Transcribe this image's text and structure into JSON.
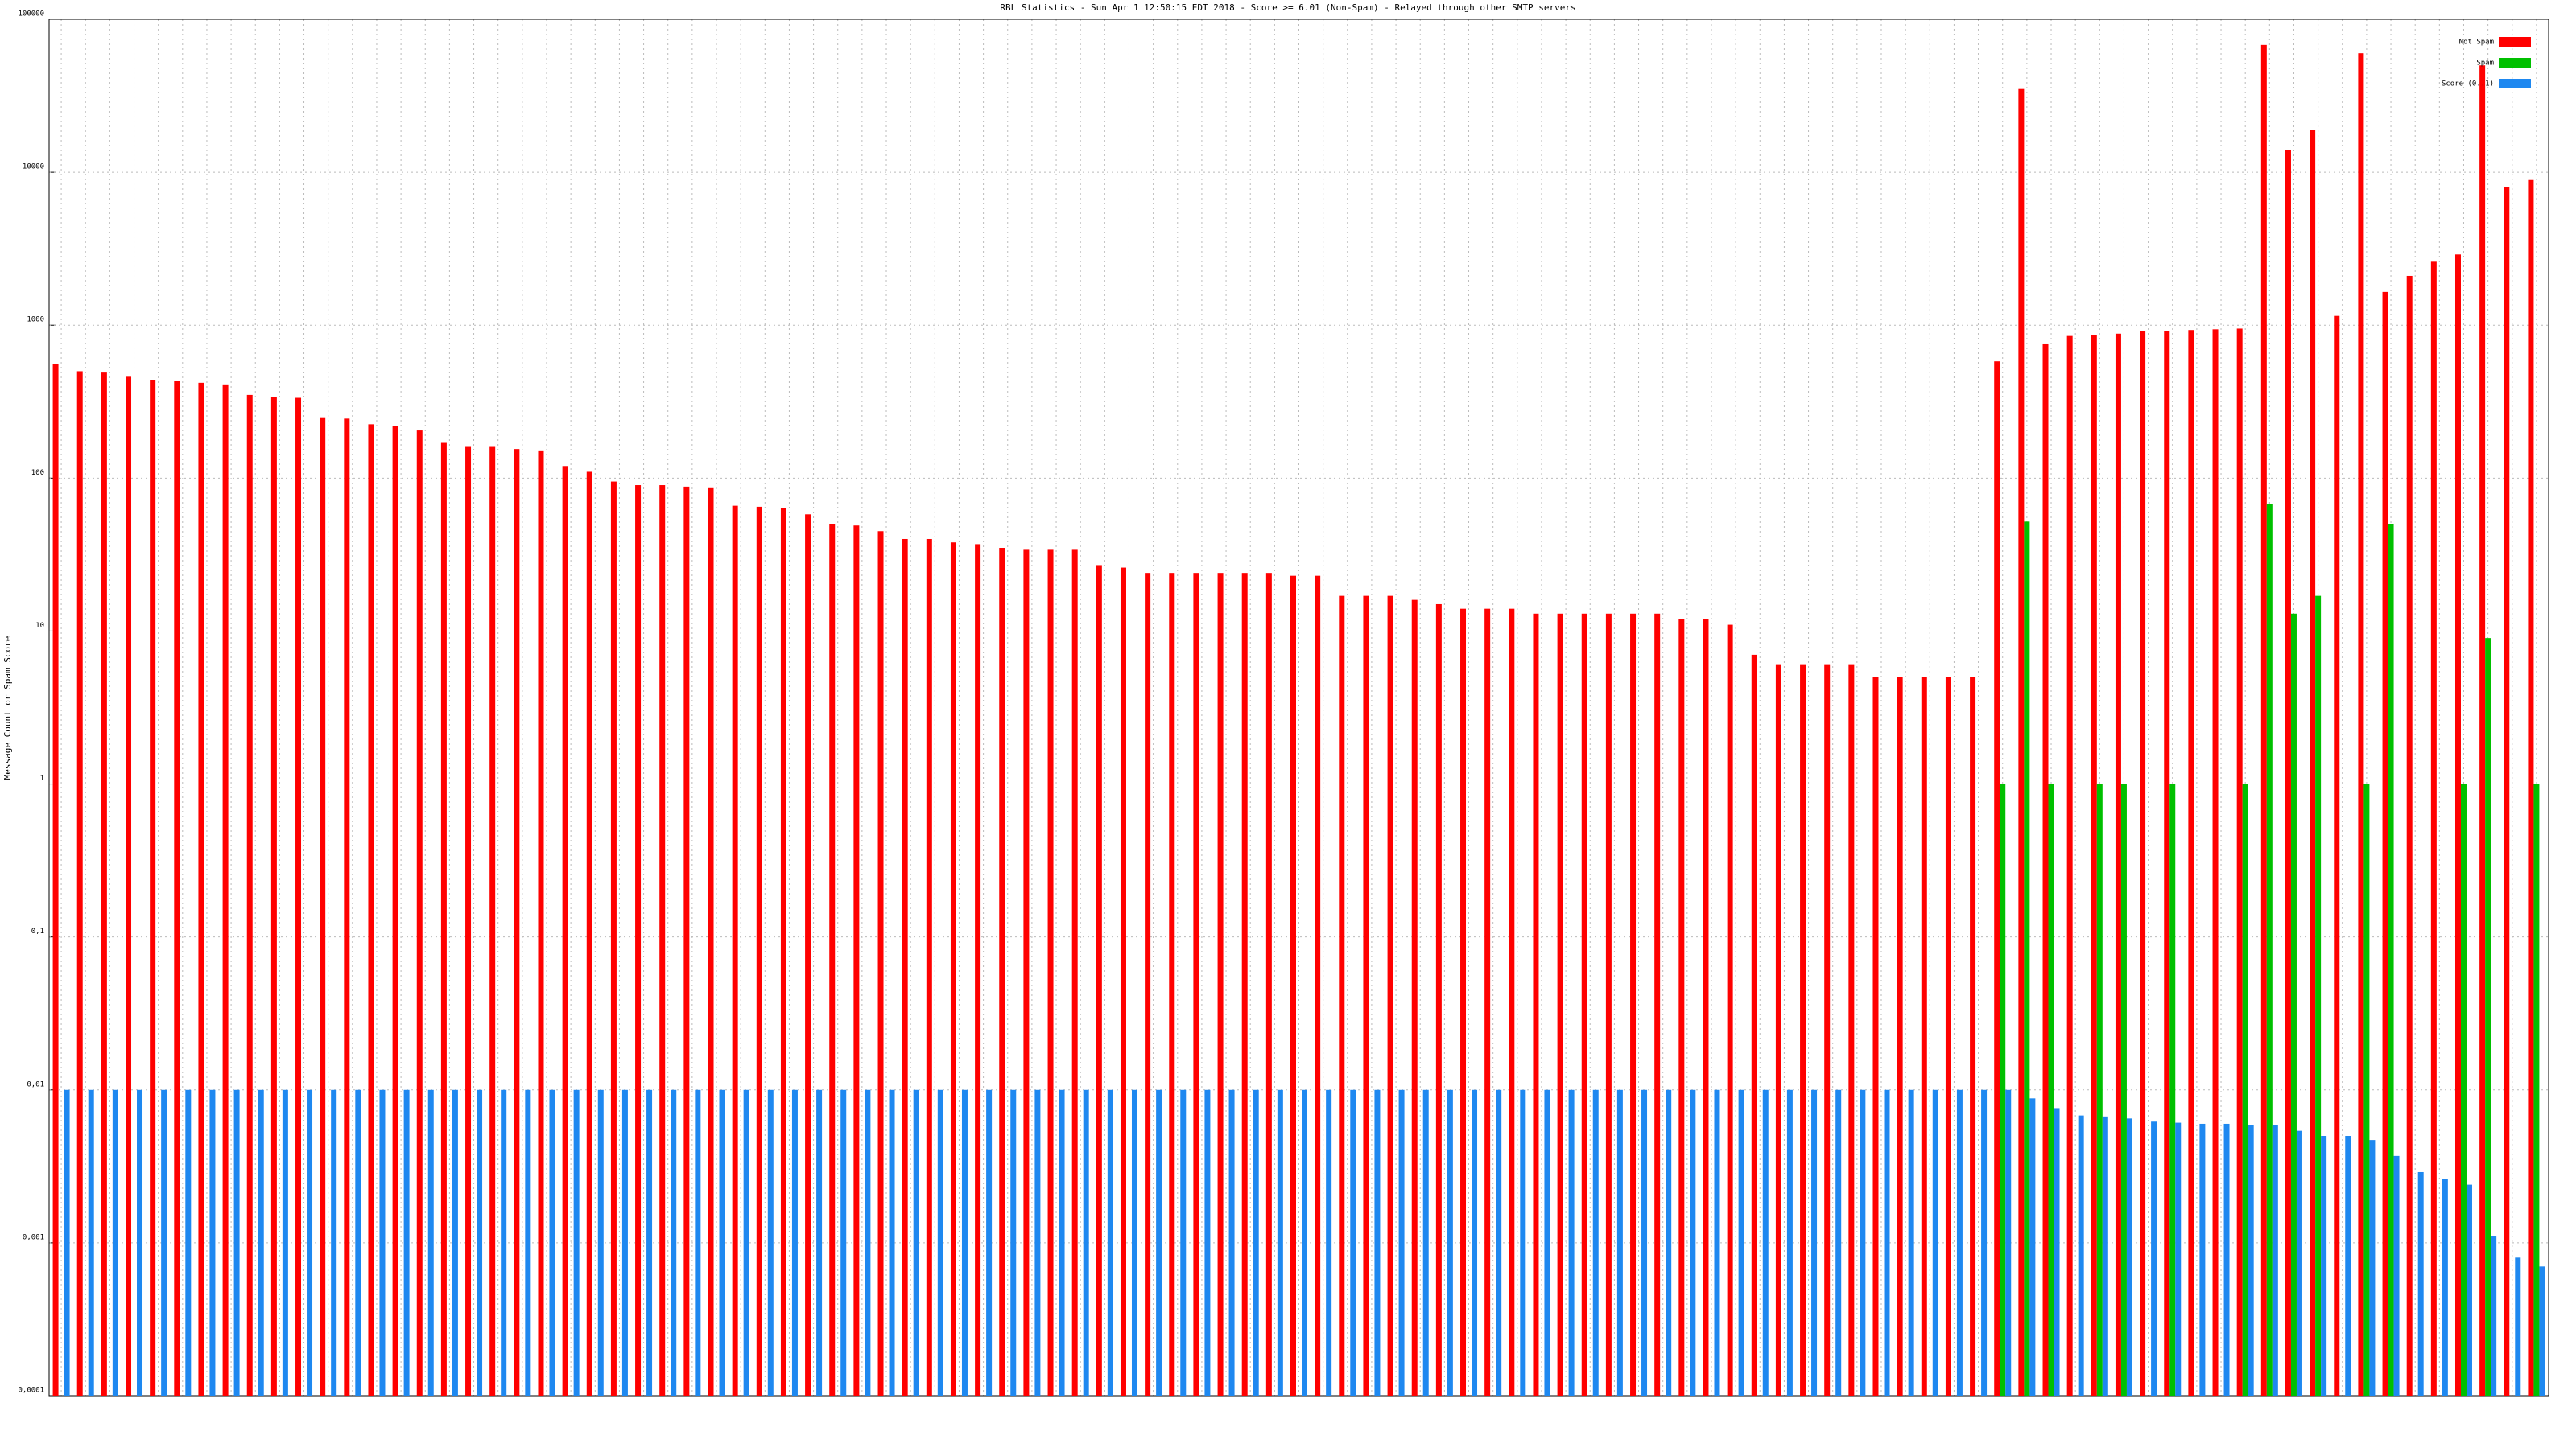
{
  "chart_data": {
    "type": "bar",
    "title": "RBL Statistics - Sun Apr  1 12:50:15 EDT 2018 - Score >= 6.01 (Non-Spam) - Relayed through other SMTP servers",
    "y_label": "Message Count or Spam Score",
    "log_y": true,
    "grid": true,
    "legend": "upper right",
    "ylim": [
      0.0001,
      100000
    ],
    "yticks": [
      {
        "value": 0.0001,
        "label": "0,0001"
      },
      {
        "value": 0.001,
        "label": "0,001"
      },
      {
        "value": 0.01,
        "label": "0,01"
      },
      {
        "value": 0.1,
        "label": "0,1"
      },
      1,
      10,
      100,
      1000,
      10000,
      100000
    ],
    "categories": [
      null,
      null,
      null,
      null,
      null,
      null,
      null,
      null,
      null,
      null,
      null,
      null,
      null,
      null,
      null,
      null,
      null,
      null,
      null,
      null,
      null,
      null,
      null,
      null,
      null,
      null,
      null,
      null,
      null,
      null,
      null,
      null,
      null,
      null,
      null,
      null,
      null,
      null,
      null,
      null,
      null,
      null,
      null,
      null,
      null,
      null,
      null,
      null,
      null,
      null,
      null,
      null,
      null,
      null,
      null,
      null,
      null,
      null,
      null,
      null,
      null,
      null,
      null,
      null,
      null,
      null,
      null,
      null,
      null,
      null,
      null,
      null,
      null,
      null,
      null,
      null,
      null,
      null,
      null,
      null,
      null,
      null,
      null,
      null,
      null,
      null,
      null,
      null,
      null,
      null,
      null,
      null,
      null,
      null,
      null,
      null,
      null,
      null,
      null,
      null,
      null,
      null,
      null
    ],
    "series": [
      {
        "name": "Not Spam",
        "color": "#ff0000",
        "values": [
          556,
          500,
          490,
          460,
          440,
          430,
          420,
          410,
          350,
          340,
          335,
          250,
          245,
          225,
          220,
          205,
          170,
          160,
          160,
          155,
          150,
          120,
          110,
          95,
          90,
          90,
          88,
          86,
          66,
          65,
          64,
          58,
          50,
          49,
          45,
          40,
          40,
          38,
          37,
          35,
          34,
          34,
          34,
          27,
          26,
          24,
          24,
          24,
          24,
          24,
          24,
          23,
          23,
          17,
          17,
          17,
          16,
          15,
          14,
          14,
          14,
          13,
          13,
          13,
          13,
          13,
          13,
          12,
          12,
          11,
          7,
          6,
          6,
          6,
          6,
          5,
          5,
          5,
          5,
          5,
          580,
          35000,
          750,
          850,
          860,
          880,
          920,
          920,
          930,
          940,
          950,
          68000,
          14000,
          19000,
          1150,
          60000,
          1650,
          2100,
          2600,
          2900,
          50000,
          8000,
          8900
        ]
      },
      {
        "name": "Spam",
        "color": "#00c000",
        "values": [
          null,
          null,
          null,
          null,
          null,
          null,
          null,
          null,
          null,
          null,
          null,
          null,
          null,
          null,
          null,
          null,
          null,
          null,
          null,
          null,
          null,
          null,
          null,
          null,
          null,
          null,
          null,
          null,
          null,
          null,
          null,
          null,
          null,
          null,
          null,
          null,
          null,
          null,
          null,
          null,
          null,
          null,
          null,
          null,
          null,
          null,
          null,
          null,
          null,
          null,
          null,
          null,
          null,
          null,
          null,
          null,
          null,
          null,
          null,
          null,
          null,
          null,
          null,
          null,
          null,
          null,
          null,
          null,
          null,
          null,
          null,
          null,
          null,
          null,
          null,
          null,
          null,
          null,
          null,
          null,
          1,
          52,
          1,
          null,
          1,
          1,
          null,
          1,
          null,
          null,
          1,
          68,
          13,
          17,
          null,
          1,
          50,
          null,
          null,
          1,
          9,
          null,
          1
        ]
      },
      {
        "name": "Score (0..1)",
        "color": "#1e88f0",
        "values": [
          0.01,
          0.01,
          0.01,
          0.01,
          0.01,
          0.01,
          0.01,
          0.01,
          0.01,
          0.01,
          0.01,
          0.01,
          0.01,
          0.01,
          0.01,
          0.01,
          0.01,
          0.01,
          0.01,
          0.01,
          0.01,
          0.01,
          0.01,
          0.01,
          0.01,
          0.01,
          0.01,
          0.01,
          0.01,
          0.01,
          0.01,
          0.01,
          0.01,
          0.01,
          0.01,
          0.01,
          0.01,
          0.01,
          0.01,
          0.01,
          0.01,
          0.01,
          0.01,
          0.01,
          0.01,
          0.01,
          0.01,
          0.01,
          0.01,
          0.01,
          0.01,
          0.01,
          0.01,
          0.01,
          0.01,
          0.01,
          0.01,
          0.01,
          0.01,
          0.01,
          0.01,
          0.01,
          0.01,
          0.01,
          0.01,
          0.01,
          0.01,
          0.01,
          0.01,
          0.01,
          0.01,
          0.01,
          0.01,
          0.01,
          0.01,
          0.01,
          0.01,
          0.01,
          0.01,
          0.01,
          0.01,
          0.0088,
          0.0076,
          0.0068,
          0.0067,
          0.0065,
          0.0062,
          0.0061,
          0.006,
          0.006,
          0.0059,
          0.0059,
          0.0054,
          0.005,
          0.005,
          0.0047,
          0.0037,
          0.0029,
          0.0026,
          0.0024,
          0.0011,
          0.0008,
          0.0007
        ]
      }
    ]
  }
}
